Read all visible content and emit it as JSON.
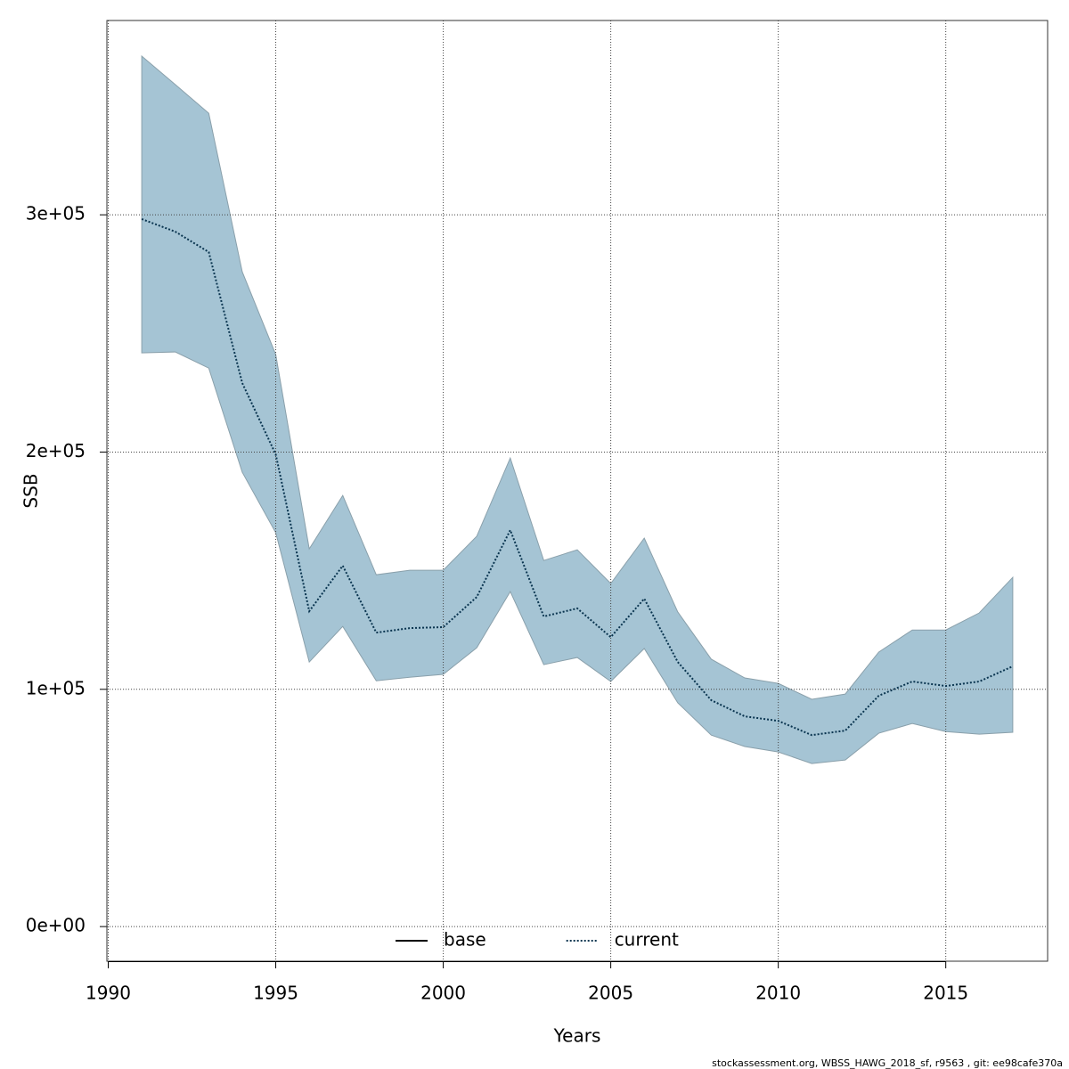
{
  "chart_data": {
    "type": "line",
    "xlabel": "Years",
    "ylabel": "SSB",
    "footer": "stockassessment.org, WBSS_HAWG_2018_sf, r9563 , git: ee98cafe370a",
    "x": [
      1991,
      1992,
      1993,
      1994,
      1995,
      1996,
      1997,
      1998,
      1999,
      2000,
      2001,
      2002,
      2003,
      2004,
      2005,
      2006,
      2007,
      2008,
      2009,
      2010,
      2011,
      2012,
      2013,
      2014,
      2015,
      2016,
      2017
    ],
    "series": [
      {
        "color": "#0a3550",
        "values": [
          298200,
          292900,
          284300,
          229100,
          199000,
          132900,
          152100,
          123900,
          125800,
          126200,
          138900,
          167100,
          130700,
          134100,
          122000,
          138200,
          111500,
          95400,
          88600,
          86700,
          80700,
          82600,
          97300,
          103300,
          101400,
          103300,
          109700
        ],
        "lower": [
          241800,
          242200,
          235400,
          191500,
          166000,
          111500,
          126500,
          103600,
          105100,
          106300,
          117500,
          141200,
          110400,
          113400,
          103300,
          117200,
          94300,
          80700,
          75900,
          73600,
          68700,
          70200,
          81500,
          85600,
          82200,
          81100,
          81900
        ],
        "upper": [
          366900,
          354900,
          342800,
          276000,
          241100,
          159200,
          181700,
          148300,
          150200,
          150200,
          164500,
          197500,
          154300,
          158800,
          144600,
          163700,
          132600,
          112700,
          104800,
          102500,
          95800,
          98000,
          115700,
          125000,
          125000,
          132200,
          147200
        ],
        "band_color": "#a5c4d4"
      }
    ],
    "legend": {
      "position": "bottom",
      "entries": [
        {
          "name": "base",
          "color": "#000000",
          "dash": "solid"
        },
        {
          "name": "current",
          "color": "#0a3550",
          "dash": "dotted"
        }
      ]
    },
    "xlim": [
      1989.96,
      2018.04
    ],
    "ylim": [
      -14600,
      381900
    ],
    "xticks": [
      1990,
      1995,
      2000,
      2005,
      2010,
      2015
    ],
    "yticks": [
      {
        "value": 0,
        "label": "0e+00"
      },
      {
        "value": 100000,
        "label": "1e+05"
      },
      {
        "value": 200000,
        "label": "2e+05"
      },
      {
        "value": 300000,
        "label": "3e+05"
      }
    ],
    "grid": true
  }
}
